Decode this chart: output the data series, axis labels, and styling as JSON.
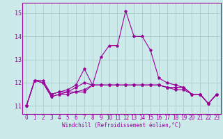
{
  "xlabel": "Windchill (Refroidissement éolien,°C)",
  "x_hours": [
    0,
    1,
    2,
    3,
    4,
    5,
    6,
    7,
    8,
    9,
    10,
    11,
    12,
    13,
    14,
    15,
    16,
    17,
    18,
    19,
    20,
    21,
    22,
    23
  ],
  "line1": [
    11.0,
    12.1,
    12.1,
    11.5,
    11.6,
    11.7,
    11.9,
    12.6,
    11.9,
    13.1,
    13.6,
    13.6,
    15.1,
    14.0,
    14.0,
    13.4,
    12.2,
    12.0,
    11.9,
    11.8,
    11.5,
    11.5,
    11.1,
    11.5
  ],
  "line2": [
    11.0,
    12.1,
    12.0,
    11.5,
    11.6,
    11.6,
    11.8,
    12.0,
    11.9,
    11.9,
    11.9,
    11.9,
    11.9,
    11.9,
    11.9,
    11.9,
    11.9,
    11.8,
    11.8,
    11.8,
    11.5,
    11.5,
    11.1,
    11.5
  ],
  "line3": [
    11.0,
    12.1,
    12.0,
    11.4,
    11.5,
    11.6,
    11.6,
    11.7,
    11.9,
    11.9,
    11.9,
    11.9,
    11.9,
    11.9,
    11.9,
    11.9,
    11.9,
    11.8,
    11.8,
    11.8,
    11.5,
    11.5,
    11.1,
    11.5
  ],
  "line4": [
    11.0,
    12.1,
    12.0,
    11.4,
    11.5,
    11.5,
    11.6,
    11.6,
    11.9,
    11.9,
    11.9,
    11.9,
    11.9,
    11.9,
    11.9,
    11.9,
    11.9,
    11.8,
    11.7,
    11.7,
    11.5,
    11.5,
    11.1,
    11.5
  ],
  "line_color": "#990099",
  "bg_color": "#cceaea",
  "grid_color": "#aacccc",
  "ylim_min": 10.65,
  "ylim_max": 15.45,
  "yticks": [
    11,
    12,
    13,
    14,
    15
  ],
  "marker": "*",
  "tick_fontsize": 5.5,
  "label_fontsize": 5.5
}
